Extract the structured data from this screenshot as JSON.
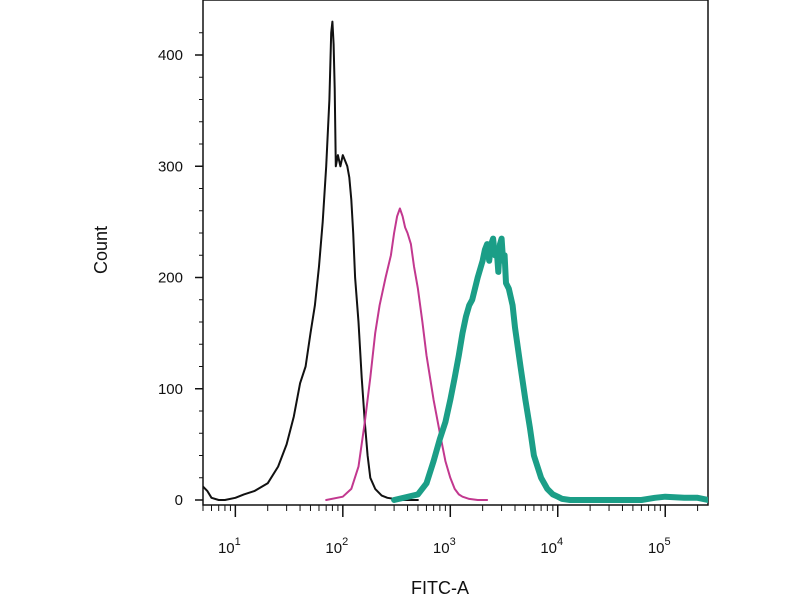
{
  "chart_data": {
    "type": "line",
    "title": "",
    "xlabel": "FITC-A",
    "ylabel": "Count",
    "x_scale": "log",
    "xlim": [
      5,
      250000
    ],
    "ylim": [
      0,
      430
    ],
    "grid": false,
    "legend": "none",
    "y_ticks": [
      {
        "value": 0,
        "label": "0"
      },
      {
        "value": 100,
        "label": "100"
      },
      {
        "value": 200,
        "label": "200"
      },
      {
        "value": 300,
        "label": "300"
      },
      {
        "value": 400,
        "label": "400"
      }
    ],
    "x_ticks": [
      {
        "value": 10,
        "base": "10",
        "exp": "1"
      },
      {
        "value": 100,
        "base": "10",
        "exp": "2"
      },
      {
        "value": 1000,
        "base": "10",
        "exp": "3"
      },
      {
        "value": 10000,
        "base": "10",
        "exp": "4"
      },
      {
        "value": 100000,
        "base": "10",
        "exp": "5"
      }
    ],
    "series": [
      {
        "color": "#111111",
        "width": 2,
        "x": [
          5,
          5.5,
          6,
          7,
          8,
          10,
          12,
          15,
          20,
          25,
          30,
          35,
          40,
          45,
          50,
          55,
          60,
          65,
          70,
          75,
          78,
          80,
          82,
          84,
          86,
          90,
          95,
          100,
          105,
          110,
          115,
          120,
          125,
          130,
          140,
          150,
          160,
          170,
          180,
          200,
          230,
          260,
          300,
          350,
          500
        ],
        "y": [
          12,
          8,
          2,
          0,
          0,
          2,
          5,
          8,
          15,
          30,
          50,
          75,
          105,
          120,
          150,
          175,
          210,
          250,
          300,
          360,
          420,
          430,
          410,
          370,
          300,
          310,
          300,
          310,
          305,
          300,
          290,
          270,
          240,
          200,
          160,
          110,
          70,
          40,
          20,
          10,
          4,
          2,
          1,
          0,
          0
        ]
      },
      {
        "color": "#c2388f",
        "width": 2,
        "x": [
          70,
          100,
          120,
          140,
          160,
          180,
          200,
          220,
          250,
          280,
          300,
          320,
          340,
          360,
          380,
          400,
          430,
          460,
          500,
          550,
          600,
          700,
          800,
          900,
          1000,
          1100,
          1200,
          1300,
          1500,
          1800,
          2200
        ],
        "y": [
          0,
          3,
          10,
          30,
          70,
          110,
          150,
          175,
          200,
          220,
          240,
          255,
          262,
          255,
          245,
          240,
          230,
          210,
          190,
          160,
          130,
          90,
          60,
          35,
          20,
          10,
          5,
          3,
          1,
          0,
          0
        ]
      },
      {
        "color": "#1b9e87",
        "width": 6,
        "x": [
          300,
          500,
          600,
          700,
          800,
          900,
          1000,
          1100,
          1200,
          1300,
          1400,
          1500,
          1600,
          1800,
          2000,
          2100,
          2200,
          2300,
          2400,
          2500,
          2600,
          2700,
          2800,
          2900,
          3000,
          3100,
          3200,
          3300,
          3500,
          3800,
          4000,
          4500,
          5000,
          5500,
          6000,
          7000,
          8000,
          9000,
          10000,
          11000,
          13000,
          20000,
          40000,
          60000,
          80000,
          100000,
          150000,
          200000,
          250000
        ],
        "y": [
          0,
          5,
          15,
          35,
          55,
          70,
          90,
          110,
          130,
          150,
          165,
          175,
          180,
          200,
          215,
          225,
          230,
          215,
          230,
          235,
          220,
          225,
          205,
          230,
          235,
          215,
          220,
          195,
          190,
          175,
          155,
          120,
          90,
          65,
          40,
          20,
          10,
          5,
          3,
          1,
          0,
          0,
          0,
          0,
          2,
          3,
          2,
          2,
          0
        ]
      }
    ]
  }
}
